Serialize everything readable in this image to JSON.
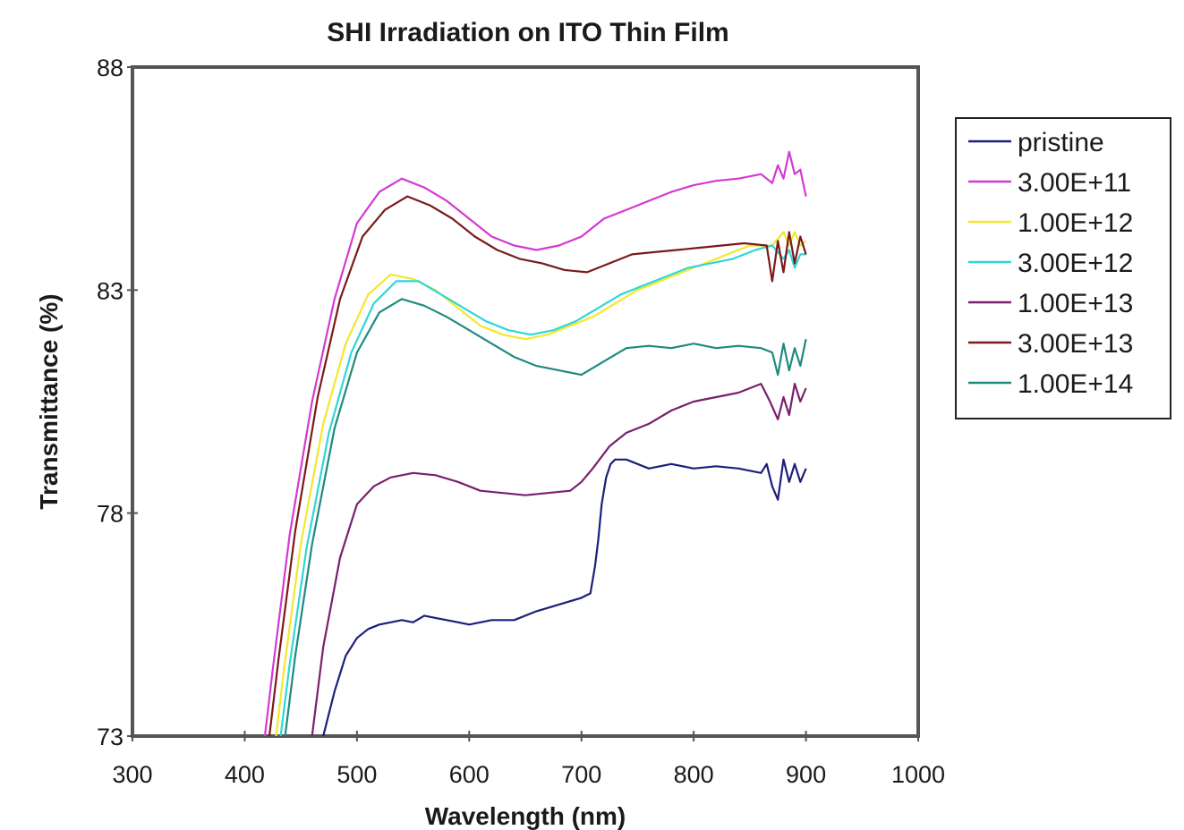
{
  "chart_data": {
    "type": "line",
    "title": "SHI Irradiation on ITO Thin Film",
    "xlabel": "Wavelength (nm)",
    "ylabel": "Transmittance (%)",
    "xlim": [
      300,
      1000
    ],
    "ylim": [
      73,
      88
    ],
    "xticks": [
      300,
      400,
      500,
      600,
      700,
      800,
      900,
      1000
    ],
    "yticks": [
      73,
      78,
      83,
      88
    ],
    "grid": false,
    "legend_position": "right",
    "series": [
      {
        "name": "pristine",
        "color": "#1c1f7a",
        "x": [
          470,
          480,
          490,
          500,
          510,
          520,
          530,
          540,
          550,
          560,
          570,
          580,
          600,
          620,
          640,
          660,
          680,
          700,
          708,
          712,
          715,
          718,
          722,
          726,
          730,
          740,
          760,
          780,
          800,
          820,
          840,
          860,
          865,
          870,
          875,
          880,
          885,
          890,
          895,
          900
        ],
        "y": [
          73.0,
          74.0,
          74.8,
          75.2,
          75.4,
          75.5,
          75.55,
          75.6,
          75.55,
          75.7,
          75.65,
          75.6,
          75.5,
          75.6,
          75.6,
          75.8,
          75.95,
          76.1,
          76.2,
          76.8,
          77.4,
          78.2,
          78.8,
          79.1,
          79.2,
          79.2,
          79.0,
          79.1,
          79.0,
          79.05,
          79.0,
          78.9,
          79.1,
          78.6,
          78.3,
          79.2,
          78.7,
          79.1,
          78.7,
          79.0
        ]
      },
      {
        "name": "3.00E+11",
        "color": "#d23ad2",
        "x": [
          418,
          425,
          440,
          460,
          480,
          500,
          520,
          540,
          560,
          580,
          600,
          620,
          640,
          660,
          680,
          700,
          720,
          740,
          760,
          780,
          800,
          820,
          840,
          860,
          870,
          875,
          880,
          885,
          890,
          895,
          900
        ],
        "y": [
          73.0,
          74.5,
          77.5,
          80.5,
          82.8,
          84.5,
          85.2,
          85.5,
          85.3,
          85.0,
          84.6,
          84.2,
          84.0,
          83.9,
          84.0,
          84.2,
          84.6,
          84.8,
          85.0,
          85.2,
          85.35,
          85.45,
          85.5,
          85.6,
          85.4,
          85.8,
          85.5,
          86.1,
          85.6,
          85.7,
          85.1
        ]
      },
      {
        "name": "1.00E+12",
        "color": "#f2e82c",
        "x": [
          428,
          435,
          450,
          470,
          490,
          510,
          530,
          550,
          570,
          590,
          610,
          630,
          650,
          670,
          690,
          710,
          730,
          750,
          770,
          790,
          810,
          830,
          850,
          870,
          880,
          885,
          890,
          895,
          900
        ],
        "y": [
          73.0,
          74.5,
          77.3,
          80.0,
          81.8,
          82.9,
          83.35,
          83.25,
          83.0,
          82.6,
          82.2,
          82.0,
          81.9,
          82.0,
          82.2,
          82.4,
          82.7,
          83.0,
          83.2,
          83.4,
          83.6,
          83.8,
          84.0,
          84.0,
          84.3,
          84.0,
          84.3,
          84.0,
          84.1
        ]
      },
      {
        "name": "3.00E+12",
        "color": "#30d6d6",
        "x": [
          432,
          440,
          455,
          475,
          495,
          515,
          535,
          555,
          575,
          595,
          615,
          635,
          655,
          675,
          695,
          715,
          735,
          755,
          775,
          795,
          815,
          835,
          855,
          870,
          880,
          885,
          890,
          895,
          900
        ],
        "y": [
          73.0,
          74.6,
          77.2,
          79.8,
          81.6,
          82.7,
          83.2,
          83.2,
          82.9,
          82.6,
          82.3,
          82.1,
          82.0,
          82.1,
          82.3,
          82.6,
          82.9,
          83.1,
          83.3,
          83.5,
          83.6,
          83.7,
          83.9,
          84.0,
          83.7,
          83.9,
          83.5,
          83.8,
          83.8
        ]
      },
      {
        "name": "1.00E+13",
        "color": "#7a1f6e",
        "x": [
          460,
          470,
          485,
          500,
          515,
          530,
          550,
          570,
          590,
          610,
          630,
          650,
          670,
          690,
          700,
          710,
          725,
          740,
          760,
          780,
          800,
          820,
          840,
          860,
          868,
          875,
          880,
          885,
          890,
          895,
          900
        ],
        "y": [
          73.0,
          75.0,
          77.0,
          78.2,
          78.6,
          78.8,
          78.9,
          78.85,
          78.7,
          78.5,
          78.45,
          78.4,
          78.45,
          78.5,
          78.7,
          79.0,
          79.5,
          79.8,
          80.0,
          80.3,
          80.5,
          80.6,
          80.7,
          80.9,
          80.5,
          80.1,
          80.6,
          80.2,
          80.9,
          80.5,
          80.8
        ]
      },
      {
        "name": "3.00E+13",
        "color": "#7a1a1a",
        "x": [
          422,
          430,
          445,
          465,
          485,
          505,
          525,
          545,
          565,
          585,
          605,
          625,
          645,
          665,
          685,
          705,
          725,
          745,
          765,
          785,
          805,
          825,
          845,
          865,
          870,
          875,
          880,
          885,
          890,
          895,
          900
        ],
        "y": [
          73.0,
          74.7,
          77.6,
          80.6,
          82.8,
          84.2,
          84.8,
          85.1,
          84.9,
          84.6,
          84.2,
          83.9,
          83.7,
          83.6,
          83.45,
          83.4,
          83.6,
          83.8,
          83.85,
          83.9,
          83.95,
          84.0,
          84.05,
          84.0,
          83.2,
          84.1,
          83.4,
          84.3,
          83.6,
          84.2,
          83.8
        ]
      },
      {
        "name": "1.00E+14",
        "color": "#1f8a80",
        "x": [
          436,
          445,
          460,
          480,
          500,
          520,
          540,
          560,
          580,
          600,
          620,
          640,
          660,
          680,
          700,
          720,
          740,
          760,
          780,
          800,
          820,
          840,
          860,
          870,
          875,
          880,
          885,
          890,
          895,
          900
        ],
        "y": [
          73.0,
          74.8,
          77.3,
          79.9,
          81.6,
          82.5,
          82.8,
          82.65,
          82.4,
          82.1,
          81.8,
          81.5,
          81.3,
          81.2,
          81.1,
          81.4,
          81.7,
          81.75,
          81.7,
          81.8,
          81.7,
          81.75,
          81.7,
          81.6,
          81.1,
          81.8,
          81.2,
          81.7,
          81.3,
          81.9
        ]
      }
    ]
  }
}
